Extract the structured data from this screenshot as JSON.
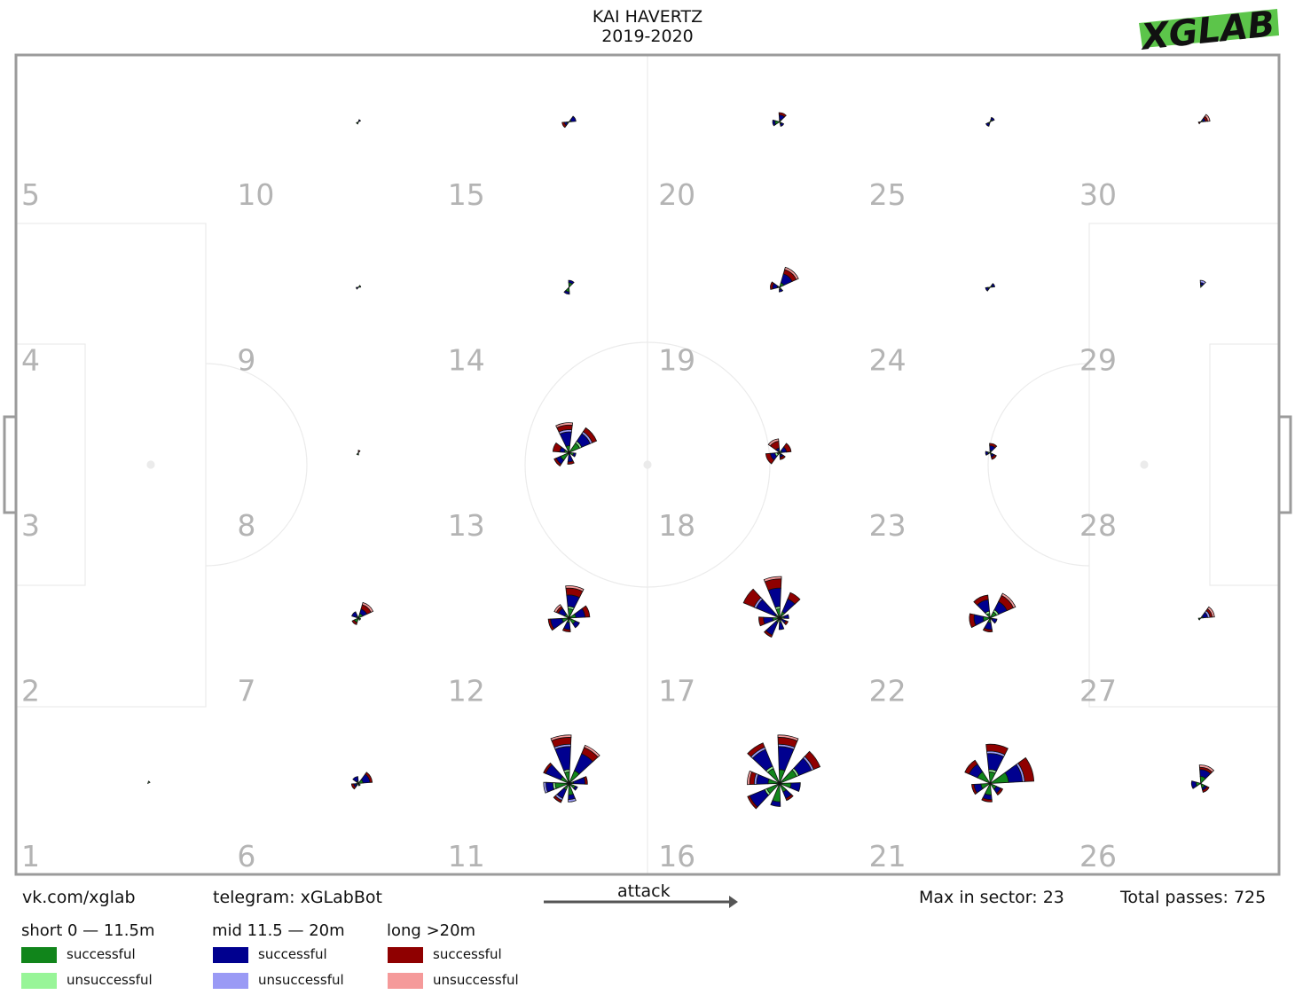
{
  "header": {
    "player": "KAI HAVERTZ",
    "season": "2019-2020",
    "logo_text": "XGLAB",
    "logo_color": "#5cc54a"
  },
  "footer": {
    "vk": "vk.com/xglab",
    "telegram": "telegram: xGLabBot",
    "attack_label": "attack",
    "max_in_sector": "Max in sector: 23",
    "total_passes": "Total passes: 725"
  },
  "legend": {
    "groups": [
      {
        "label": "short 0 — 11.5m",
        "successful": "successful",
        "unsuccessful": "unsuccessful",
        "color_successful": "#11851b",
        "color_unsuccessful": "#98f598"
      },
      {
        "label": "mid 11.5 — 20m",
        "successful": "successful",
        "unsuccessful": "unsuccessful",
        "color_successful": "#00008f",
        "color_unsuccessful": "#9a9af5"
      },
      {
        "label": "long >20m",
        "successful": "successful",
        "unsuccessful": "unsuccessful",
        "color_successful": "#8f0000",
        "color_unsuccessful": "#f59a9a"
      }
    ]
  },
  "chart_data": {
    "type": "pass-rose",
    "title": "KAI HAVERTZ",
    "subtitle": "2019-2020",
    "zones": {
      "columns": 6,
      "rows": 5,
      "labels": [
        "1",
        "2",
        "3",
        "4",
        "5",
        "6",
        "7",
        "8",
        "9",
        "10",
        "11",
        "12",
        "13",
        "14",
        "15",
        "16",
        "17",
        "18",
        "19",
        "20",
        "21",
        "22",
        "23",
        "24",
        "25",
        "26",
        "27",
        "28",
        "29",
        "30"
      ]
    },
    "max_in_sector": 23,
    "total_passes": 725,
    "direction": "attack left-to-right",
    "roses": [
      {
        "zone": 1,
        "sectors": [
          [
            0,
            1,
            0,
            0,
            0,
            0
          ],
          [
            0,
            0,
            0,
            0,
            0,
            0
          ]
        ]
      },
      {
        "zone": 2,
        "sectors": [
          [
            0,
            0,
            0,
            0,
            0,
            0
          ]
        ]
      },
      {
        "zone": 6,
        "sectors": [
          [
            2,
            0,
            3,
            0,
            1,
            0
          ],
          [
            1,
            0,
            2,
            0,
            0,
            0
          ],
          [
            1,
            0,
            1,
            0,
            1,
            0
          ],
          [
            1,
            0,
            0,
            0,
            0,
            0
          ]
        ]
      },
      {
        "zone": 7,
        "sectors": [
          [
            2,
            0,
            2,
            0,
            2,
            1
          ],
          [
            1,
            0,
            2,
            0,
            0,
            0
          ],
          [
            2,
            0,
            0,
            0,
            1,
            0
          ],
          [
            1,
            0,
            0,
            0,
            0,
            0
          ]
        ]
      },
      {
        "zone": 8,
        "sectors": [
          [
            0,
            0,
            0,
            0,
            1,
            0
          ],
          [
            1,
            0,
            0,
            0,
            0,
            0
          ]
        ]
      },
      {
        "zone": 9,
        "sectors": [
          [
            1,
            0,
            0,
            0,
            0,
            0
          ],
          [
            0,
            0,
            1,
            0,
            0,
            0
          ]
        ]
      },
      {
        "zone": 10,
        "sectors": [
          [
            0,
            0,
            1,
            0,
            0,
            0
          ],
          [
            1,
            0,
            0,
            0,
            0,
            0
          ]
        ]
      },
      {
        "zone": 11,
        "sectors": [
          [
            6,
            0,
            8,
            0,
            3,
            1
          ],
          [
            5,
            1,
            10,
            1,
            3,
            1
          ],
          [
            4,
            0,
            7,
            0,
            1,
            0
          ],
          [
            6,
            1,
            3,
            1,
            0,
            0
          ],
          [
            3,
            0,
            4,
            1,
            1,
            0
          ],
          [
            5,
            0,
            2,
            1,
            0,
            0
          ],
          [
            3,
            0,
            1,
            0,
            0,
            0
          ],
          [
            2,
            0,
            5,
            0,
            1,
            0
          ]
        ]
      },
      {
        "zone": 12,
        "sectors": [
          [
            3,
            0,
            4,
            0,
            2,
            0
          ],
          [
            4,
            1,
            5,
            0,
            3,
            1
          ],
          [
            2,
            0,
            3,
            0,
            1,
            1
          ],
          [
            3,
            0,
            5,
            0,
            1,
            0
          ],
          [
            2,
            0,
            3,
            0,
            1,
            0
          ],
          [
            3,
            0,
            2,
            0,
            0,
            0
          ]
        ]
      },
      {
        "zone": 13,
        "sectors": [
          [
            5,
            1,
            4,
            1,
            2,
            0
          ],
          [
            3,
            0,
            6,
            1,
            2,
            1
          ],
          [
            2,
            0,
            2,
            0,
            3,
            0
          ],
          [
            4,
            0,
            2,
            0,
            1,
            0
          ],
          [
            1,
            0,
            3,
            0,
            1,
            0
          ],
          [
            2,
            0,
            1,
            0,
            0,
            0
          ]
        ]
      },
      {
        "zone": 14,
        "sectors": [
          [
            2,
            0,
            1,
            0,
            0,
            0
          ],
          [
            2,
            0,
            1,
            0,
            0,
            0
          ]
        ]
      },
      {
        "zone": 15,
        "sectors": [
          [
            1,
            0,
            2,
            0,
            0,
            0
          ],
          [
            1,
            0,
            1,
            0,
            1,
            0
          ]
        ]
      },
      {
        "zone": 16,
        "sectors": [
          [
            8,
            1,
            6,
            1,
            3,
            0
          ],
          [
            6,
            0,
            10,
            1,
            3,
            1
          ],
          [
            7,
            1,
            8,
            1,
            2,
            0
          ],
          [
            5,
            0,
            5,
            1,
            2,
            1
          ],
          [
            6,
            1,
            7,
            0,
            1,
            0
          ],
          [
            8,
            0,
            2,
            0,
            0,
            0
          ],
          [
            4,
            0,
            3,
            0,
            1,
            0
          ],
          [
            5,
            0,
            4,
            0,
            0,
            0
          ]
        ]
      },
      {
        "zone": 17,
        "sectors": [
          [
            3,
            0,
            6,
            0,
            3,
            0
          ],
          [
            4,
            1,
            8,
            0,
            4,
            1
          ],
          [
            2,
            0,
            9,
            1,
            5,
            0
          ],
          [
            3,
            0,
            4,
            0,
            2,
            0
          ],
          [
            2,
            0,
            6,
            0,
            1,
            0
          ],
          [
            2,
            0,
            3,
            0,
            0,
            0
          ],
          [
            1,
            0,
            2,
            0,
            1,
            0
          ],
          [
            2,
            0,
            2,
            0,
            0,
            0
          ]
        ]
      },
      {
        "zone": 18,
        "sectors": [
          [
            1,
            0,
            2,
            0,
            2,
            0
          ],
          [
            1,
            0,
            1,
            0,
            3,
            1
          ],
          [
            1,
            1,
            2,
            0,
            2,
            0
          ],
          [
            1,
            0,
            1,
            0,
            1,
            0
          ]
        ]
      },
      {
        "zone": 19,
        "sectors": [
          [
            2,
            0,
            4,
            0,
            2,
            1
          ],
          [
            1,
            0,
            2,
            0,
            1,
            0
          ],
          [
            1,
            0,
            1,
            0,
            0,
            0
          ]
        ]
      },
      {
        "zone": 20,
        "sectors": [
          [
            1,
            0,
            2,
            0,
            1,
            0
          ],
          [
            2,
            0,
            1,
            0,
            0,
            0
          ],
          [
            1,
            0,
            1,
            0,
            0,
            0
          ]
        ]
      },
      {
        "zone": 21,
        "sectors": [
          [
            8,
            0,
            6,
            1,
            4,
            0
          ],
          [
            5,
            1,
            7,
            1,
            3,
            0
          ],
          [
            6,
            0,
            4,
            0,
            2,
            0
          ],
          [
            4,
            0,
            3,
            0,
            1,
            0
          ],
          [
            5,
            0,
            2,
            0,
            1,
            0
          ],
          [
            3,
            0,
            2,
            0,
            1,
            0
          ]
        ]
      },
      {
        "zone": 22,
        "sectors": [
          [
            3,
            1,
            4,
            0,
            3,
            1
          ],
          [
            2,
            1,
            5,
            0,
            2,
            0
          ],
          [
            3,
            0,
            4,
            0,
            2,
            0
          ],
          [
            2,
            0,
            3,
            0,
            1,
            0
          ],
          [
            1,
            0,
            2,
            0,
            0,
            0
          ]
        ]
      },
      {
        "zone": 23,
        "sectors": [
          [
            1,
            0,
            2,
            0,
            1,
            0
          ],
          [
            1,
            0,
            1,
            0,
            0,
            0
          ],
          [
            1,
            0,
            1,
            0,
            1,
            0
          ]
        ]
      },
      {
        "zone": 24,
        "sectors": [
          [
            1,
            0,
            1,
            0,
            0,
            0
          ],
          [
            1,
            0,
            1,
            0,
            0,
            0
          ]
        ]
      },
      {
        "zone": 25,
        "sectors": [
          [
            1,
            0,
            1,
            0,
            0,
            0
          ],
          [
            1,
            0,
            1,
            0,
            0,
            0
          ]
        ]
      },
      {
        "zone": 26,
        "sectors": [
          [
            3,
            0,
            3,
            0,
            1,
            1
          ],
          [
            2,
            0,
            2,
            0,
            0,
            0
          ],
          [
            2,
            0,
            1,
            0,
            1,
            0
          ]
        ]
      },
      {
        "zone": 27,
        "sectors": [
          [
            1,
            0,
            2,
            1,
            1,
            1
          ],
          [
            1,
            0,
            0,
            0,
            0,
            0
          ]
        ]
      },
      {
        "zone": 29,
        "sectors": [
          [
            1,
            0,
            1,
            1,
            0,
            0
          ]
        ]
      },
      {
        "zone": 30,
        "sectors": [
          [
            1,
            0,
            1,
            0,
            1,
            1
          ],
          [
            0,
            0,
            0,
            0,
            1,
            0
          ]
        ]
      }
    ]
  }
}
